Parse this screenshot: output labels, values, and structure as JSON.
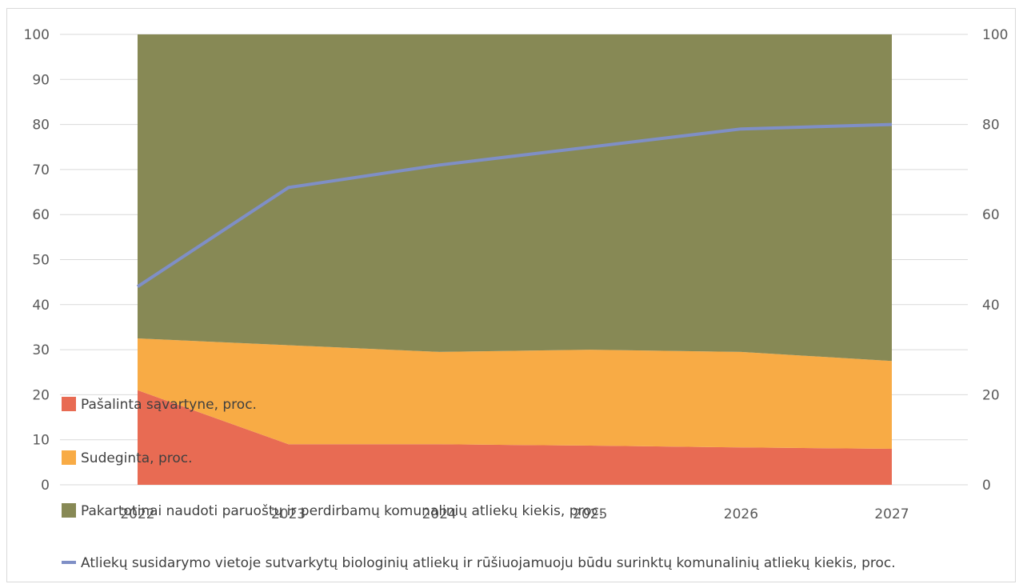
{
  "chart_data": {
    "type": "area",
    "categories": [
      "2022",
      "2023",
      "2024",
      "2025",
      "2026",
      "2027"
    ],
    "series": [
      {
        "name": "Pašalinta sąvartyne, proc.",
        "kind": "stacked-area",
        "color": "#e86b53",
        "values": [
          21,
          9,
          9,
          8.7,
          8.3,
          8
        ]
      },
      {
        "name": "Sudeginta, proc.",
        "kind": "stacked-area",
        "color": "#f8ab45",
        "values": [
          11.5,
          22,
          20.5,
          21.3,
          21.2,
          19.5
        ]
      },
      {
        "name": "Pakartotinai naudoti paruoštų ir perdirbamų komunalinių atliekų kiekis, proc.",
        "kind": "stacked-area",
        "color": "#878955",
        "values": [
          67.5,
          69,
          70.5,
          70,
          70.5,
          72.5
        ]
      },
      {
        "name": "Atliekų susidarymo vietoje sutvarkytų biologinių atliekų ir rūšiuojamuoju būdu surinktų komunalinių atliekų kiekis, proc.",
        "kind": "line",
        "axis": "right",
        "color": "#7f8fc6",
        "values": [
          44,
          66,
          71,
          75,
          79,
          80
        ]
      }
    ],
    "y_left": {
      "min": 0,
      "max": 100,
      "ticks": [
        "0",
        "10",
        "20",
        "30",
        "40",
        "50",
        "60",
        "70",
        "80",
        "90",
        "100"
      ]
    },
    "y_right": {
      "min": 0,
      "max": 100,
      "ticks": [
        "0",
        "20",
        "40",
        "60",
        "80",
        "100"
      ]
    },
    "grid": true,
    "legend_position": "bottom-left"
  }
}
